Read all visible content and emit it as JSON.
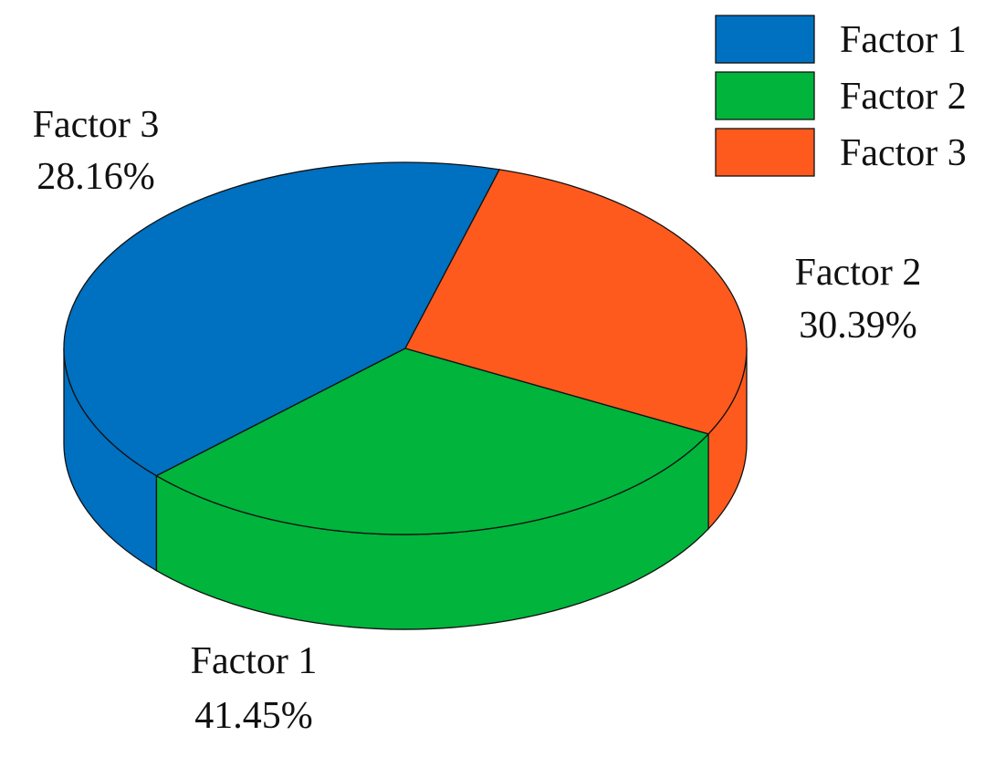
{
  "chart_data": {
    "type": "pie",
    "style": "3d",
    "categories": [
      "Factor 1",
      "Factor 2",
      "Factor 3"
    ],
    "values": [
      41.45,
      30.39,
      28.16
    ],
    "value_labels": [
      "41.45%",
      "30.39%",
      "28.16%"
    ],
    "colors": [
      "#0070C0",
      "#00B43C",
      "#FF5A1E"
    ],
    "legend": {
      "placement": "top-right",
      "entries": [
        "Factor 1",
        "Factor 2",
        "Factor 3"
      ]
    },
    "title": "",
    "xlabel": "",
    "ylabel": ""
  }
}
